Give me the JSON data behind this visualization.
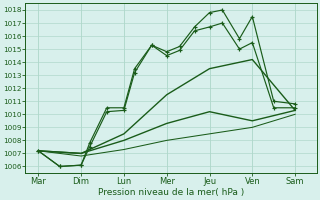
{
  "xlabel": "Pression niveau de la mer( hPa )",
  "bg_color": "#d8f0ec",
  "grid_color": "#b0d8cc",
  "line_color": "#1a5c1a",
  "ylim": [
    1005.5,
    1018.5
  ],
  "ytick_vals": [
    1006,
    1007,
    1008,
    1009,
    1010,
    1011,
    1012,
    1013,
    1014,
    1015,
    1016,
    1017,
    1018
  ],
  "days": [
    "Mar",
    "Dim",
    "Lun",
    "Mer",
    "Jeu",
    "Ven",
    "Sam"
  ],
  "day_x": [
    0,
    1,
    2,
    3,
    4,
    5,
    6
  ],
  "line1_x": [
    0.0,
    0.5,
    1.0,
    1.2,
    1.6,
    2.0,
    2.25,
    2.65,
    3.0,
    3.3,
    3.65,
    4.0,
    4.3,
    4.7,
    5.0,
    5.5,
    6.0
  ],
  "line1_y": [
    1007.2,
    1006.0,
    1006.1,
    1007.8,
    1010.5,
    1010.5,
    1013.5,
    1015.3,
    1014.8,
    1015.2,
    1016.7,
    1017.8,
    1018.0,
    1015.8,
    1017.5,
    1011.0,
    1010.8
  ],
  "line2_x": [
    0.0,
    0.5,
    1.0,
    1.2,
    1.6,
    2.0,
    2.25,
    2.65,
    3.0,
    3.3,
    3.65,
    4.0,
    4.3,
    4.7,
    5.0,
    5.5,
    6.0
  ],
  "line2_y": [
    1007.2,
    1006.0,
    1006.1,
    1007.5,
    1010.2,
    1010.3,
    1013.2,
    1015.3,
    1014.5,
    1014.9,
    1016.4,
    1016.7,
    1017.0,
    1015.0,
    1015.5,
    1010.5,
    1010.5
  ],
  "line3_x": [
    0.0,
    1.0,
    2.0,
    3.0,
    4.0,
    5.0,
    6.0
  ],
  "line3_y": [
    1007.2,
    1007.0,
    1008.5,
    1011.5,
    1013.5,
    1014.2,
    1010.3
  ],
  "line4_x": [
    0.0,
    1.0,
    2.0,
    3.0,
    4.0,
    5.0,
    6.0
  ],
  "line4_y": [
    1007.2,
    1007.0,
    1008.0,
    1009.3,
    1010.2,
    1009.5,
    1010.3
  ],
  "line5_x": [
    0.0,
    1.0,
    2.0,
    3.0,
    4.0,
    5.0,
    6.0
  ],
  "line5_y": [
    1007.2,
    1006.8,
    1007.3,
    1008.0,
    1008.5,
    1009.0,
    1010.0
  ]
}
